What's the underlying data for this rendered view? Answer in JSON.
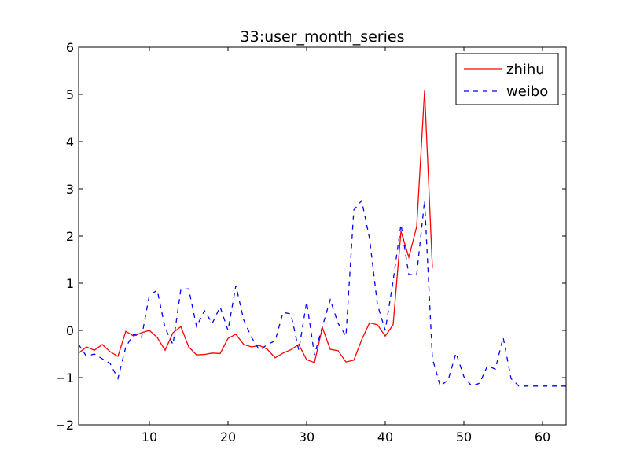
{
  "chart_data": {
    "type": "line",
    "title": "33:user_month_series",
    "xlabel": "",
    "ylabel": "",
    "xlim": [
      1,
      63
    ],
    "ylim": [
      -2,
      6
    ],
    "x_ticks": [
      10,
      20,
      30,
      40,
      50,
      60
    ],
    "y_ticks": [
      -2,
      -1,
      0,
      1,
      2,
      3,
      4,
      5,
      6
    ],
    "x_tick_labels": [
      "10",
      "20",
      "30",
      "40",
      "50",
      "60"
    ],
    "y_tick_labels": [
      "−2",
      "−1",
      "0",
      "1",
      "2",
      "3",
      "4",
      "5",
      "6"
    ],
    "grid": false,
    "legend_position": "top-right",
    "series": [
      {
        "name": "zhihu",
        "color": "#ff0000",
        "style": "solid",
        "x": [
          1,
          2,
          3,
          4,
          5,
          6,
          7,
          8,
          9,
          10,
          11,
          12,
          13,
          14,
          15,
          16,
          17,
          18,
          19,
          20,
          21,
          22,
          23,
          24,
          25,
          26,
          27,
          28,
          29,
          30,
          31,
          32,
          33,
          34,
          35,
          36,
          37,
          38,
          39,
          40,
          41,
          42,
          43,
          44,
          45,
          46
        ],
        "y": [
          -0.48,
          -0.35,
          -0.42,
          -0.3,
          -0.45,
          -0.55,
          -0.02,
          -0.12,
          -0.05,
          0.0,
          -0.15,
          -0.42,
          -0.05,
          0.08,
          -0.35,
          -0.52,
          -0.51,
          -0.48,
          -0.49,
          -0.17,
          -0.08,
          -0.3,
          -0.35,
          -0.32,
          -0.4,
          -0.58,
          -0.48,
          -0.41,
          -0.3,
          -0.62,
          -0.68,
          0.06,
          -0.4,
          -0.43,
          -0.67,
          -0.63,
          -0.2,
          0.16,
          0.12,
          -0.12,
          0.12,
          2.1,
          1.55,
          2.2,
          5.08,
          1.32
        ]
      },
      {
        "name": "weibo",
        "color": "#0000ff",
        "style": "dashed",
        "x": [
          1,
          2,
          3,
          4,
          5,
          6,
          7,
          8,
          9,
          10,
          11,
          12,
          13,
          14,
          15,
          16,
          17,
          18,
          19,
          20,
          21,
          22,
          23,
          24,
          25,
          26,
          27,
          28,
          29,
          30,
          31,
          32,
          33,
          34,
          35,
          36,
          37,
          38,
          39,
          40,
          41,
          42,
          43,
          44,
          45,
          46,
          47,
          48,
          49,
          50,
          51,
          52,
          53,
          54,
          55,
          56,
          57,
          58,
          59,
          60,
          61,
          62,
          63
        ],
        "y": [
          -0.3,
          -0.55,
          -0.5,
          -0.6,
          -0.7,
          -1.02,
          -0.35,
          -0.08,
          -0.15,
          0.75,
          0.85,
          0.05,
          -0.3,
          0.87,
          0.88,
          0.08,
          0.42,
          0.15,
          0.5,
          0.0,
          0.95,
          0.22,
          -0.15,
          -0.42,
          -0.3,
          -0.22,
          0.38,
          0.35,
          -0.42,
          0.6,
          -0.52,
          0.08,
          0.65,
          0.15,
          -0.12,
          2.55,
          2.75,
          1.95,
          0.55,
          0.0,
          1.05,
          2.25,
          1.18,
          1.18,
          2.75,
          -0.6,
          -1.18,
          -1.05,
          -0.48,
          -0.98,
          -1.18,
          -1.12,
          -0.75,
          -0.82,
          -0.15,
          -1.02,
          -1.18,
          -1.18,
          -1.18,
          -1.18,
          -1.18,
          -1.18,
          -1.18
        ]
      }
    ]
  }
}
